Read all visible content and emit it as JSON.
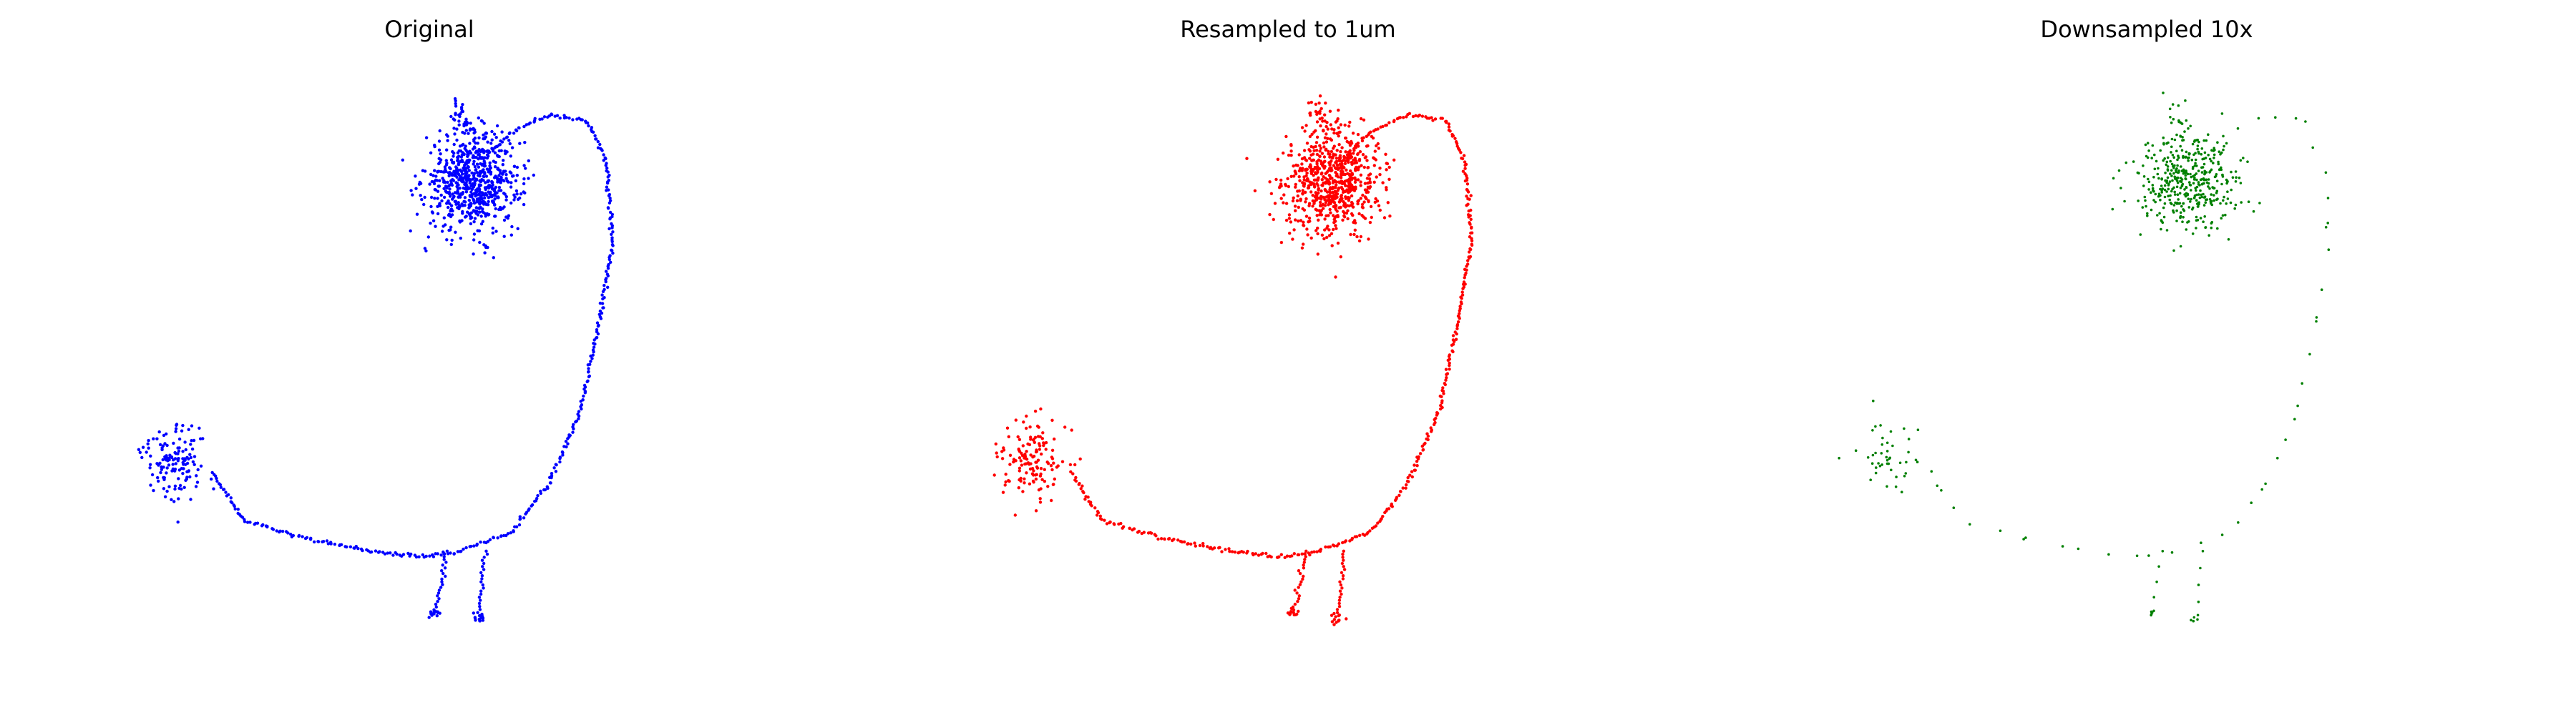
{
  "figure": {
    "panels": [
      {
        "title": "Original",
        "color": "#0000ff"
      },
      {
        "title": "Resampled to 1um",
        "color": "#ff0000"
      },
      {
        "title": "Downsampled 10x",
        "color": "#008000"
      }
    ]
  },
  "chart_data": [
    {
      "type": "scatter",
      "title": "Original",
      "color": "#0000ff",
      "axes_visible": false,
      "grid": false,
      "density": "high",
      "xlim": [
        0,
        100
      ],
      "ylim": [
        0,
        100
      ],
      "structure": {
        "soma_cluster": {
          "center": [
            54,
            82
          ],
          "spread": [
            5,
            6
          ]
        },
        "upper_tuft": {
          "from": [
            51,
            95
          ],
          "to": [
            55,
            89
          ]
        },
        "primary_arc": [
          [
            56,
            86
          ],
          [
            60,
            90
          ],
          [
            66,
            93
          ],
          [
            72,
            92
          ],
          [
            75,
            85
          ],
          [
            76,
            72
          ],
          [
            74,
            60
          ],
          [
            71,
            45
          ],
          [
            66,
            33
          ],
          [
            60,
            25
          ],
          [
            52,
            22
          ],
          [
            46,
            21
          ],
          [
            38,
            22
          ],
          [
            28,
            24
          ],
          [
            18,
            27
          ],
          [
            13,
            35
          ]
        ],
        "left_branches_center": [
          7,
          37
        ],
        "bottom_branches": [
          [
            50,
            22
          ],
          [
            48,
            12
          ],
          [
            56,
            22
          ],
          [
            55,
            11
          ]
        ]
      }
    },
    {
      "type": "scatter",
      "title": "Resampled to 1um",
      "color": "#ff0000",
      "axes_visible": false,
      "grid": false,
      "density": "high",
      "xlim": [
        0,
        100
      ],
      "ylim": [
        0,
        100
      ],
      "structure": {
        "soma_cluster": {
          "center": [
            54,
            82
          ],
          "spread": [
            5,
            6
          ]
        },
        "upper_tuft": {
          "from": [
            51,
            95
          ],
          "to": [
            55,
            89
          ]
        },
        "primary_arc": [
          [
            56,
            86
          ],
          [
            60,
            90
          ],
          [
            66,
            93
          ],
          [
            72,
            92
          ],
          [
            75,
            85
          ],
          [
            76,
            72
          ],
          [
            74,
            60
          ],
          [
            71,
            45
          ],
          [
            66,
            33
          ],
          [
            60,
            25
          ],
          [
            52,
            22
          ],
          [
            46,
            21
          ],
          [
            38,
            22
          ],
          [
            28,
            24
          ],
          [
            18,
            27
          ],
          [
            13,
            35
          ]
        ],
        "left_branches_center": [
          7,
          37
        ],
        "bottom_branches": [
          [
            50,
            22
          ],
          [
            48,
            12
          ],
          [
            56,
            22
          ],
          [
            55,
            11
          ]
        ]
      }
    },
    {
      "type": "scatter",
      "title": "Downsampled 10x",
      "color": "#008000",
      "axes_visible": false,
      "grid": false,
      "density": "low",
      "xlim": [
        0,
        100
      ],
      "ylim": [
        0,
        100
      ],
      "structure": {
        "soma_cluster": {
          "center": [
            54,
            82
          ],
          "spread": [
            5,
            6
          ]
        },
        "upper_tuft": {
          "from": [
            51,
            95
          ],
          "to": [
            55,
            89
          ]
        },
        "primary_arc": [
          [
            56,
            86
          ],
          [
            60,
            90
          ],
          [
            66,
            93
          ],
          [
            72,
            92
          ],
          [
            75,
            85
          ],
          [
            76,
            72
          ],
          [
            74,
            60
          ],
          [
            71,
            45
          ],
          [
            66,
            33
          ],
          [
            60,
            25
          ],
          [
            52,
            22
          ],
          [
            46,
            21
          ],
          [
            38,
            22
          ],
          [
            28,
            24
          ],
          [
            18,
            27
          ],
          [
            13,
            35
          ]
        ],
        "left_branches_center": [
          7,
          37
        ],
        "bottom_branches": [
          [
            50,
            22
          ],
          [
            48,
            12
          ],
          [
            56,
            22
          ],
          [
            55,
            11
          ]
        ]
      }
    }
  ]
}
